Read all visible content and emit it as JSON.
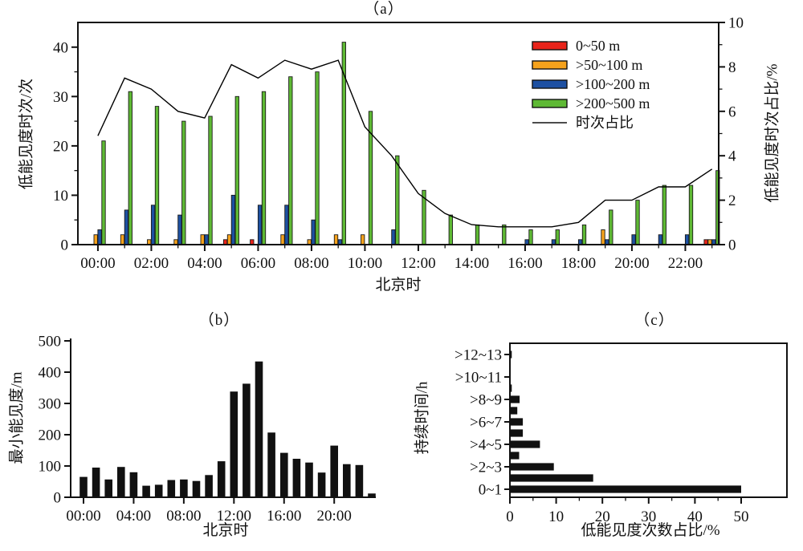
{
  "chart_data": [
    {
      "id": "a",
      "type": "grouped-bar+line",
      "title": "（a）",
      "xlabel": "北京时",
      "ylabel_left": "低能见度时次/次",
      "ylabel_right": "低能见度时次占比/%",
      "categories": [
        "00:00",
        "01:00",
        "02:00",
        "03:00",
        "04:00",
        "05:00",
        "06:00",
        "07:00",
        "08:00",
        "09:00",
        "10:00",
        "11:00",
        "12:00",
        "13:00",
        "14:00",
        "15:00",
        "16:00",
        "17:00",
        "18:00",
        "19:00",
        "20:00",
        "21:00",
        "22:00",
        "23:00"
      ],
      "x_major_tick_labels": [
        "00:00",
        "02:00",
        "04:00",
        "06:00",
        "08:00",
        "10:00",
        "12:00",
        "14:00",
        "16:00",
        "18:00",
        "20:00",
        "22:00"
      ],
      "ylim_left": [
        0,
        45
      ],
      "yticks_left": [
        0,
        10,
        20,
        30,
        40
      ],
      "yticks_left_minor": [
        5,
        15,
        25,
        35
      ],
      "ylim_right": [
        0,
        10
      ],
      "yticks_right": [
        0,
        2,
        4,
        6,
        8,
        10
      ],
      "yticks_right_minor": [
        1,
        3,
        5,
        7,
        9
      ],
      "grid": false,
      "legend_position": "inside-upper-right",
      "series": [
        {
          "name": "0~50 m",
          "color": "#e8231a",
          "values": [
            0,
            0,
            0,
            0,
            0,
            1,
            1,
            0,
            0,
            0,
            0,
            0,
            0,
            0,
            0,
            0,
            0,
            0,
            0,
            0,
            0,
            0,
            0,
            1
          ]
        },
        {
          "name": ">50~100 m",
          "color": "#f5a21c",
          "values": [
            2,
            2,
            1,
            1,
            2,
            2,
            0,
            2,
            1,
            2,
            2,
            0,
            0,
            0,
            0,
            0,
            0,
            0,
            0,
            3,
            0,
            0,
            0,
            1
          ]
        },
        {
          "name": ">100~200 m",
          "color": "#1d50a2",
          "values": [
            3,
            7,
            8,
            6,
            2,
            10,
            8,
            8,
            5,
            1,
            0,
            3,
            0,
            0,
            0,
            0,
            1,
            1,
            1,
            1,
            2,
            2,
            2,
            1
          ]
        },
        {
          "name": ">200~500 m",
          "color": "#5eb934",
          "values": [
            21,
            31,
            28,
            25,
            26,
            30,
            31,
            34,
            35,
            41,
            27,
            18,
            11,
            6,
            4,
            4,
            3,
            3,
            4,
            7,
            9,
            12,
            12,
            15
          ]
        }
      ],
      "line_series": {
        "name": "时次占比",
        "color": "#000000",
        "values": [
          4.9,
          7.5,
          7.0,
          6.0,
          5.7,
          8.1,
          7.5,
          8.3,
          7.9,
          8.3,
          5.3,
          4.0,
          2.3,
          1.4,
          0.9,
          0.8,
          0.8,
          0.8,
          1.0,
          2.0,
          2.0,
          2.6,
          2.6,
          3.4
        ]
      }
    },
    {
      "id": "b",
      "type": "bar",
      "title": "（b）",
      "xlabel": "北京时",
      "ylabel": "最小能见度/m",
      "categories": [
        "00:00",
        "01:00",
        "02:00",
        "03:00",
        "04:00",
        "05:00",
        "06:00",
        "07:00",
        "08:00",
        "09:00",
        "10:00",
        "11:00",
        "12:00",
        "13:00",
        "14:00",
        "15:00",
        "16:00",
        "17:00",
        "18:00",
        "19:00",
        "20:00",
        "21:00",
        "22:00",
        "23:00"
      ],
      "x_major_tick_labels": [
        "00:00",
        "04:00",
        "08:00",
        "12:00",
        "16:00",
        "20:00"
      ],
      "ylim": [
        0,
        500
      ],
      "yticks": [
        0,
        100,
        200,
        300,
        400,
        500
      ],
      "bar_color": "#111111",
      "values": [
        65,
        95,
        57,
        97,
        80,
        37,
        40,
        55,
        57,
        52,
        71,
        115,
        338,
        363,
        434,
        207,
        142,
        123,
        111,
        79,
        165,
        106,
        103,
        12
      ]
    },
    {
      "id": "c",
      "type": "horizontal-bar",
      "title": "（c）",
      "xlabel": "低能见度次数占比/%",
      "ylabel": "持续时间/h",
      "categories": [
        "0~1",
        ">1~2",
        ">2~3",
        ">3~4",
        ">4~5",
        ">5~6",
        ">6~7",
        ">7~8",
        ">8~9",
        ">9~10",
        ">10~11",
        ">11~12",
        ">12~13"
      ],
      "y_tick_labels": [
        "0~1",
        ">2~3",
        ">4~5",
        ">6~7",
        ">8~9",
        ">10~11",
        ">12~13"
      ],
      "xlim": [
        0,
        50
      ],
      "xticks": [
        0,
        10,
        20,
        30,
        40,
        50
      ],
      "xticks_minor": [
        5,
        15,
        25,
        35,
        45
      ],
      "bar_color": "#111111",
      "values": [
        50,
        18,
        9.5,
        2,
        6.5,
        2.8,
        2.8,
        1.6,
        2.1,
        0.4,
        0,
        0,
        0.4
      ]
    }
  ]
}
